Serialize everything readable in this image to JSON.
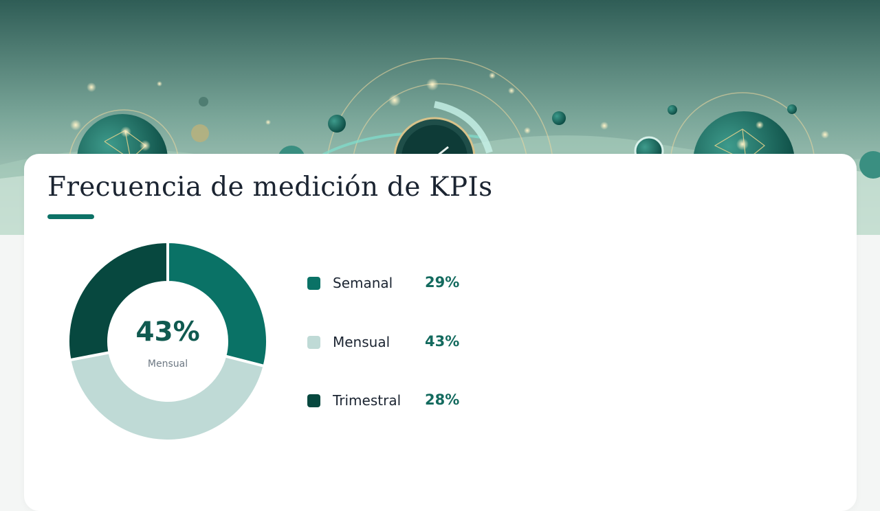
{
  "title": "Frecuencia de medición de KPIs",
  "chart_data": {
    "type": "pie",
    "style": "donut",
    "categories": [
      "Semanal",
      "Mensual",
      "Trimestral"
    ],
    "values": [
      29,
      43,
      28
    ],
    "value_labels": [
      "29%",
      "43%",
      "28%"
    ],
    "colors": [
      "#0a7266",
      "#bfdad6",
      "#07483f"
    ],
    "center": {
      "value": "43%",
      "label": "Mensual"
    },
    "legend_position": "right"
  },
  "theme": {
    "accent": "#0d7267",
    "hero_sky_top": "#2f5d56",
    "hero_sky_bottom": "#b7d6c5"
  }
}
